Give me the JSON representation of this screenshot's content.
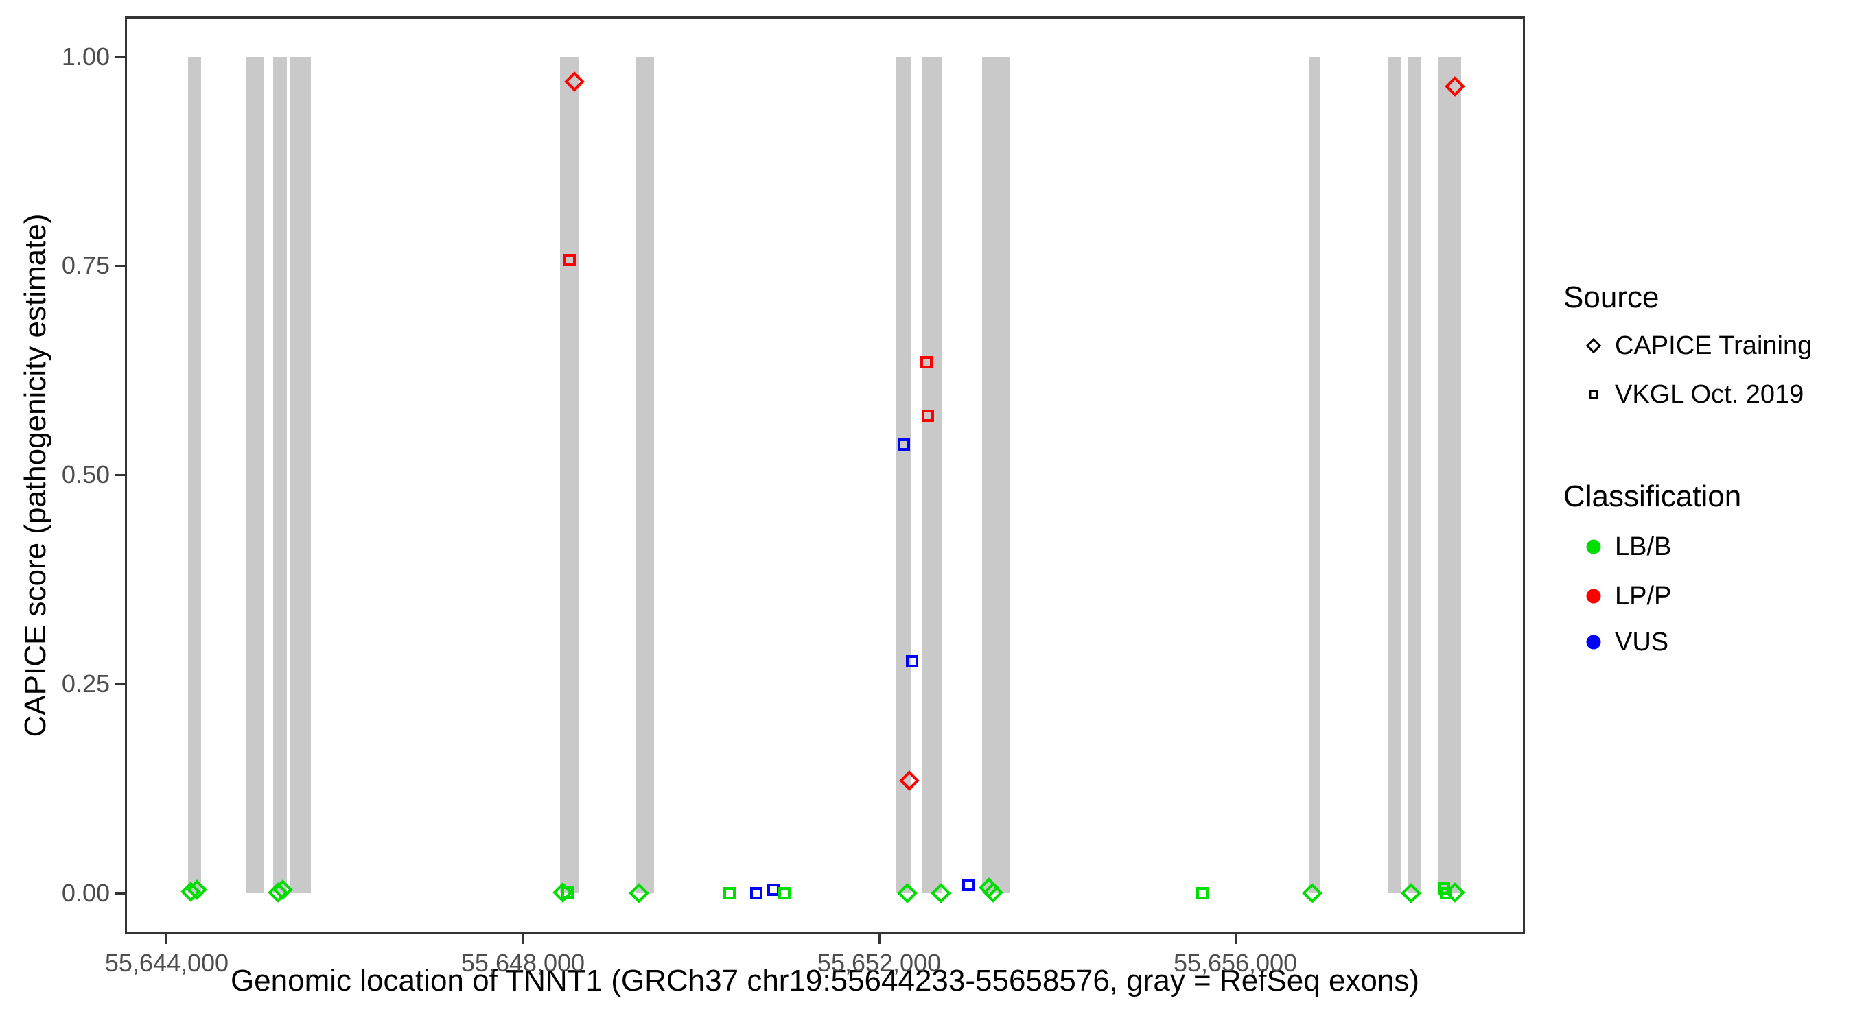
{
  "figure": {
    "x_axis_title": "Genomic location of TNNT1 (GRCh37 chr19:55644233-55658576, gray = RefSeq exons)",
    "y_axis_title": "CAPICE score (pathogenicity estimate)"
  },
  "legend": {
    "source": {
      "title": "Source",
      "items": [
        {
          "label": "CAPICE Training",
          "glyph": "diamond"
        },
        {
          "label": "VKGL Oct. 2019",
          "glyph": "square"
        }
      ]
    },
    "classification": {
      "title": "Classification",
      "items": [
        {
          "label": "LB/B",
          "color": "#00dd00"
        },
        {
          "label": "LP/P",
          "color": "#ff0000"
        },
        {
          "label": "VUS",
          "color": "#0000ff"
        }
      ]
    }
  },
  "chart_data": {
    "type": "scatter",
    "title": "",
    "xlabel": "Genomic location of TNNT1 (GRCh37 chr19:55644233-55658576, gray = RefSeq exons)",
    "ylabel": "CAPICE score (pathogenicity estimate)",
    "xlim": [
      55643530,
      55659252
    ],
    "ylim": [
      -0.049,
      1.048
    ],
    "grid": false,
    "legend_position": "right",
    "x_ticks": [
      {
        "value": 55644000,
        "label": "55,644,000"
      },
      {
        "value": 55648000,
        "label": "55,648,000"
      },
      {
        "value": 55652000,
        "label": "55,652,000"
      },
      {
        "value": 55656000,
        "label": "55,656,000"
      }
    ],
    "y_ticks": [
      {
        "value": 0.0,
        "label": "0.00"
      },
      {
        "value": 0.25,
        "label": "0.25"
      },
      {
        "value": 0.5,
        "label": "0.50"
      },
      {
        "value": 0.75,
        "label": "0.75"
      },
      {
        "value": 1.0,
        "label": "1.00"
      }
    ],
    "exon_color": "#c9c9c9",
    "exon_span": {
      "ymin": 0.0,
      "ymax": 1.0
    },
    "exons": [
      [
        55644239,
        55644386
      ],
      [
        55644886,
        55645095
      ],
      [
        55645195,
        55645349
      ],
      [
        55645387,
        55645618
      ],
      [
        55648416,
        55648624
      ],
      [
        55649271,
        55649472
      ],
      [
        55652184,
        55652354
      ],
      [
        55652477,
        55652701
      ],
      [
        55653155,
        55653471
      ],
      [
        55656832,
        55656948
      ],
      [
        55657718,
        55657857
      ],
      [
        55657942,
        55658088
      ],
      [
        55658281,
        55658396
      ],
      [
        55658404,
        55658535
      ]
    ],
    "classification_colors": {
      "LB/B": "#00dd00",
      "LP/P": "#ff0000",
      "VUS": "#0000ff"
    },
    "source_shapes": {
      "CAPICE Training": "diamond",
      "VKGL Oct. 2019": "square"
    },
    "points": [
      {
        "bp": 55650620,
        "score": 0.0,
        "classification": "VUS",
        "source": "VKGL Oct. 2019"
      },
      {
        "bp": 55650812,
        "score": 0.004,
        "classification": "VUS",
        "source": "VKGL Oct. 2019"
      },
      {
        "bp": 55653002,
        "score": 0.01,
        "classification": "VUS",
        "source": "VKGL Oct. 2019"
      },
      {
        "bp": 55652278,
        "score": 0.536,
        "classification": "VUS",
        "source": "VKGL Oct. 2019"
      },
      {
        "bp": 55652370,
        "score": 0.277,
        "classification": "VUS",
        "source": "VKGL Oct. 2019"
      },
      {
        "bp": 55648524,
        "score": 0.757,
        "classification": "LP/P",
        "source": "VKGL Oct. 2019"
      },
      {
        "bp": 55652532,
        "score": 0.635,
        "classification": "LP/P",
        "source": "VKGL Oct. 2019"
      },
      {
        "bp": 55652547,
        "score": 0.571,
        "classification": "LP/P",
        "source": "VKGL Oct. 2019"
      },
      {
        "bp": 55648578,
        "score": 0.97,
        "classification": "LP/P",
        "source": "CAPICE Training"
      },
      {
        "bp": 55652340,
        "score": 0.135,
        "classification": "LP/P",
        "source": "CAPICE Training"
      },
      {
        "bp": 55658466,
        "score": 0.964,
        "classification": "LP/P",
        "source": "CAPICE Training"
      },
      {
        "bp": 55648500,
        "score": 0.001,
        "classification": "LB/B",
        "source": "VKGL Oct. 2019"
      },
      {
        "bp": 55650320,
        "score": 0.0,
        "classification": "LB/B",
        "source": "VKGL Oct. 2019"
      },
      {
        "bp": 55650936,
        "score": 0.0,
        "classification": "LB/B",
        "source": "VKGL Oct. 2019"
      },
      {
        "bp": 55655630,
        "score": 0.0,
        "classification": "LB/B",
        "source": "VKGL Oct. 2019"
      },
      {
        "bp": 55658343,
        "score": 0.006,
        "classification": "LB/B",
        "source": "VKGL Oct. 2019"
      },
      {
        "bp": 55658365,
        "score": 0.0,
        "classification": "LB/B",
        "source": "VKGL Oct. 2019"
      },
      {
        "bp": 55644270,
        "score": 0.002,
        "classification": "LB/B",
        "source": "CAPICE Training"
      },
      {
        "bp": 55644340,
        "score": 0.004,
        "classification": "LB/B",
        "source": "CAPICE Training"
      },
      {
        "bp": 55645250,
        "score": 0.001,
        "classification": "LB/B",
        "source": "CAPICE Training"
      },
      {
        "bp": 55645305,
        "score": 0.004,
        "classification": "LB/B",
        "source": "CAPICE Training"
      },
      {
        "bp": 55648447,
        "score": 0.001,
        "classification": "LB/B",
        "source": "CAPICE Training"
      },
      {
        "bp": 55649303,
        "score": 0.0,
        "classification": "LB/B",
        "source": "CAPICE Training"
      },
      {
        "bp": 55652316,
        "score": 0.0,
        "classification": "LB/B",
        "source": "CAPICE Training"
      },
      {
        "bp": 55652695,
        "score": 0.0,
        "classification": "LB/B",
        "source": "CAPICE Training"
      },
      {
        "bp": 55653233,
        "score": 0.007,
        "classification": "LB/B",
        "source": "CAPICE Training"
      },
      {
        "bp": 55653280,
        "score": 0.001,
        "classification": "LB/B",
        "source": "CAPICE Training"
      },
      {
        "bp": 55656864,
        "score": 0.0,
        "classification": "LB/B",
        "source": "CAPICE Training"
      },
      {
        "bp": 55657975,
        "score": 0.0,
        "classification": "LB/B",
        "source": "CAPICE Training"
      },
      {
        "bp": 55658467,
        "score": 0.001,
        "classification": "LB/B",
        "source": "CAPICE Training"
      }
    ]
  }
}
